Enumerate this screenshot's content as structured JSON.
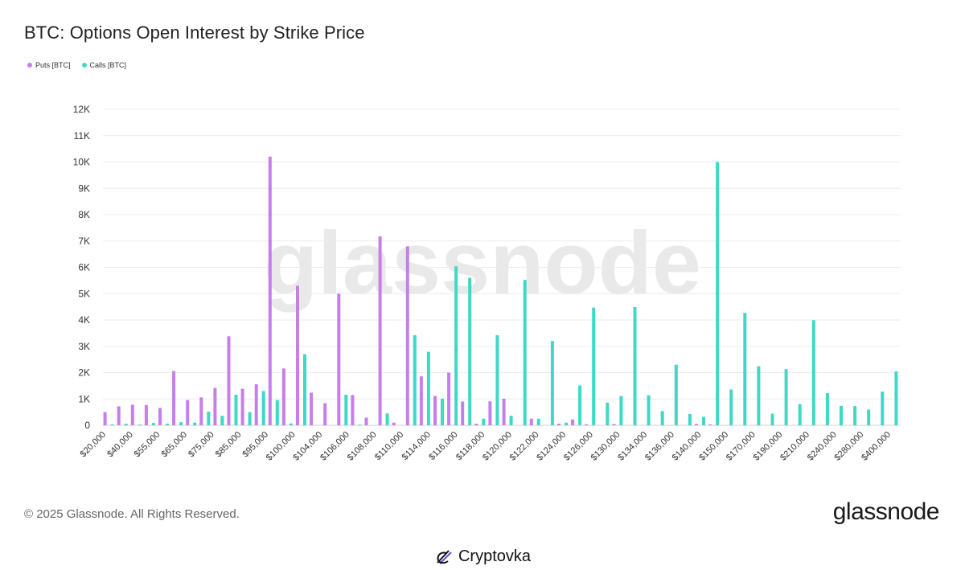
{
  "title": "BTC: Options Open Interest by Strike Price",
  "legend": [
    {
      "label": "Puts [BTC]",
      "color": "#c77ee8"
    },
    {
      "label": "Calls [BTC]",
      "color": "#3fd8c6"
    }
  ],
  "watermark": "glassnode",
  "footer": {
    "copyright": "© 2025 Glassnode. All Rights Reserved.",
    "brand": "glassnode"
  },
  "credit": {
    "text": "Cryptovka",
    "icon": "cryptovka-logo-icon"
  },
  "chart_data": {
    "type": "bar",
    "ylim": [
      0,
      12000
    ],
    "yticks": [
      0,
      1000,
      2000,
      3000,
      4000,
      5000,
      6000,
      7000,
      8000,
      9000,
      10000,
      11000,
      12000
    ],
    "ytick_labels": [
      "0",
      "1K",
      "2K",
      "3K",
      "4K",
      "5K",
      "6K",
      "7K",
      "8K",
      "9K",
      "10K",
      "11K",
      "12K"
    ],
    "grid": true,
    "legend_position": "top-left",
    "tick_labels": [
      "$20,000",
      "$40,000",
      "$55,000",
      "$65,000",
      "$75,000",
      "$85,000",
      "$95,000",
      "$100,000",
      "$104,000",
      "$106,000",
      "$108,000",
      "$110,000",
      "$114,000",
      "$116,000",
      "$118,000",
      "$120,000",
      "$122,000",
      "$124,000",
      "$126,000",
      "$130,000",
      "$134,000",
      "$136,000",
      "$140,000",
      "$150,000",
      "$170,000",
      "$190,000",
      "$210,000",
      "$240,000",
      "$280,000",
      "$400,000"
    ],
    "series": [
      {
        "name": "Puts [BTC]",
        "color": "#c77ee8",
        "values": [
          500,
          720,
          780,
          770,
          660,
          2060,
          960,
          1060,
          1420,
          3380,
          1390,
          1560,
          10200,
          2160,
          5300,
          1240,
          840,
          5000,
          1150,
          290,
          7180,
          100,
          6800,
          1860,
          1110,
          2000,
          900,
          60,
          910,
          1010,
          0,
          250,
          0,
          60,
          220,
          40,
          0,
          50,
          0,
          0,
          0,
          0,
          0,
          50,
          30,
          0,
          0,
          0,
          0,
          0,
          0,
          0,
          0,
          0,
          0,
          0,
          0,
          0
        ]
      },
      {
        "name": "Calls [BTC]",
        "color": "#3fd8c6",
        "values": [
          40,
          60,
          30,
          90,
          60,
          120,
          100,
          520,
          360,
          1160,
          500,
          1300,
          960,
          70,
          2700,
          0,
          0,
          1160,
          20,
          0,
          450,
          0,
          3420,
          2790,
          1010,
          6040,
          5600,
          250,
          3420,
          360,
          5520,
          250,
          3200,
          100,
          1510,
          4470,
          860,
          1110,
          4490,
          1140,
          540,
          2300,
          430,
          320,
          10000,
          1360,
          4270,
          2240,
          440,
          2130,
          800,
          3990,
          1220,
          740,
          730,
          600,
          1280,
          2050
        ]
      }
    ]
  }
}
